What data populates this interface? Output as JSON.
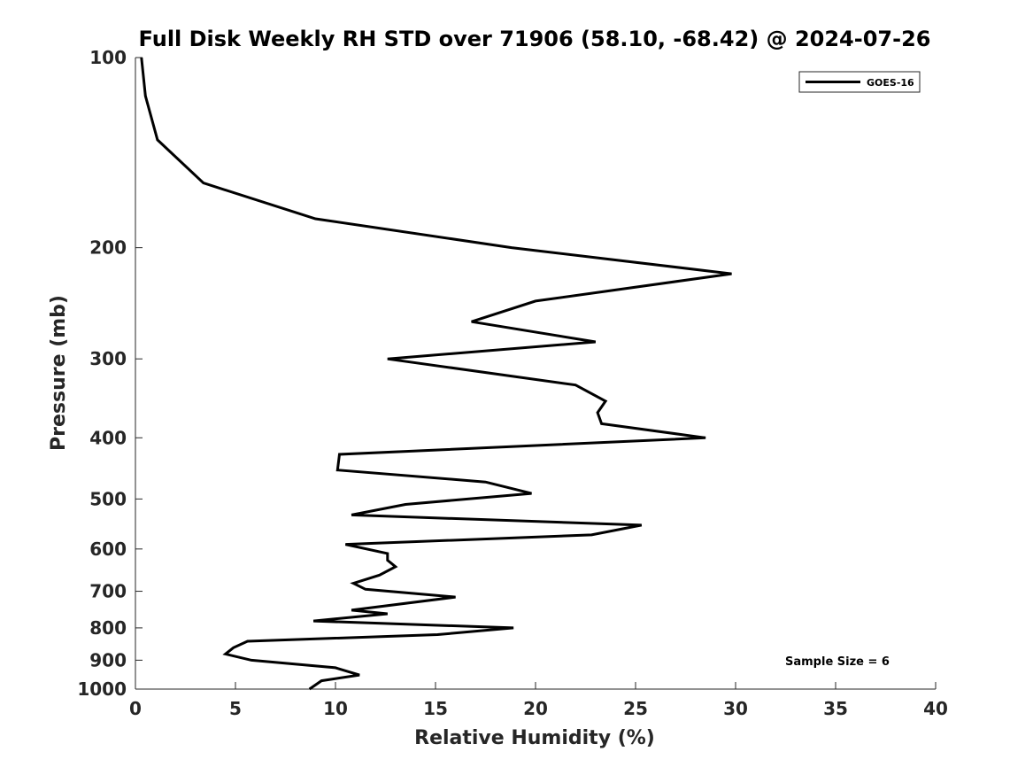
{
  "chart_data": {
    "type": "line",
    "title": "Full Disk Weekly RH STD over 71906 (58.10, -68.42) @ 2024-07-26",
    "xlabel": "Relative Humidity (%)",
    "ylabel": "Pressure (mb)",
    "xlim": [
      0,
      40
    ],
    "ylim": [
      100,
      1000
    ],
    "yscale": "log",
    "y_reversed": true,
    "xticks": [
      0,
      5,
      10,
      15,
      20,
      25,
      30,
      35,
      40
    ],
    "xtick_labels": [
      "0",
      "5",
      "10",
      "15",
      "20",
      "25",
      "30",
      "35",
      "40"
    ],
    "yticks": [
      100,
      200,
      300,
      400,
      500,
      600,
      700,
      800,
      900,
      1000
    ],
    "ytick_labels": [
      "100",
      "200",
      "300",
      "400",
      "500",
      "600",
      "700",
      "800",
      "900",
      "1000"
    ],
    "legend_position": "top-right",
    "series": [
      {
        "name": "GOES-16",
        "color": "#000000",
        "points": [
          [
            0.3,
            100
          ],
          [
            0.5,
            115
          ],
          [
            1.1,
            135
          ],
          [
            3.4,
            158
          ],
          [
            9.0,
            180
          ],
          [
            18.8,
            200
          ],
          [
            29.8,
            220
          ],
          [
            20.0,
            243
          ],
          [
            16.8,
            262
          ],
          [
            23.0,
            282
          ],
          [
            12.6,
            300
          ],
          [
            22.0,
            330
          ],
          [
            23.5,
            350
          ],
          [
            23.1,
            365
          ],
          [
            23.3,
            380
          ],
          [
            28.5,
            400
          ],
          [
            10.2,
            425
          ],
          [
            10.1,
            450
          ],
          [
            17.5,
            470
          ],
          [
            19.8,
            490
          ],
          [
            13.5,
            510
          ],
          [
            10.8,
            530
          ],
          [
            25.3,
            550
          ],
          [
            22.8,
            570
          ],
          [
            10.5,
            590
          ],
          [
            12.6,
            610
          ],
          [
            12.6,
            625
          ],
          [
            13.0,
            640
          ],
          [
            12.2,
            660
          ],
          [
            10.9,
            680
          ],
          [
            11.5,
            695
          ],
          [
            16.0,
            715
          ],
          [
            10.8,
            750
          ],
          [
            12.6,
            760
          ],
          [
            8.9,
            780
          ],
          [
            18.9,
            800
          ],
          [
            15.1,
            820
          ],
          [
            5.6,
            840
          ],
          [
            4.9,
            860
          ],
          [
            4.5,
            880
          ],
          [
            5.8,
            900
          ],
          [
            10.0,
            925
          ],
          [
            11.2,
            950
          ],
          [
            9.3,
            970
          ],
          [
            8.7,
            1000
          ]
        ]
      }
    ],
    "annotation": "Sample Size = 6"
  }
}
